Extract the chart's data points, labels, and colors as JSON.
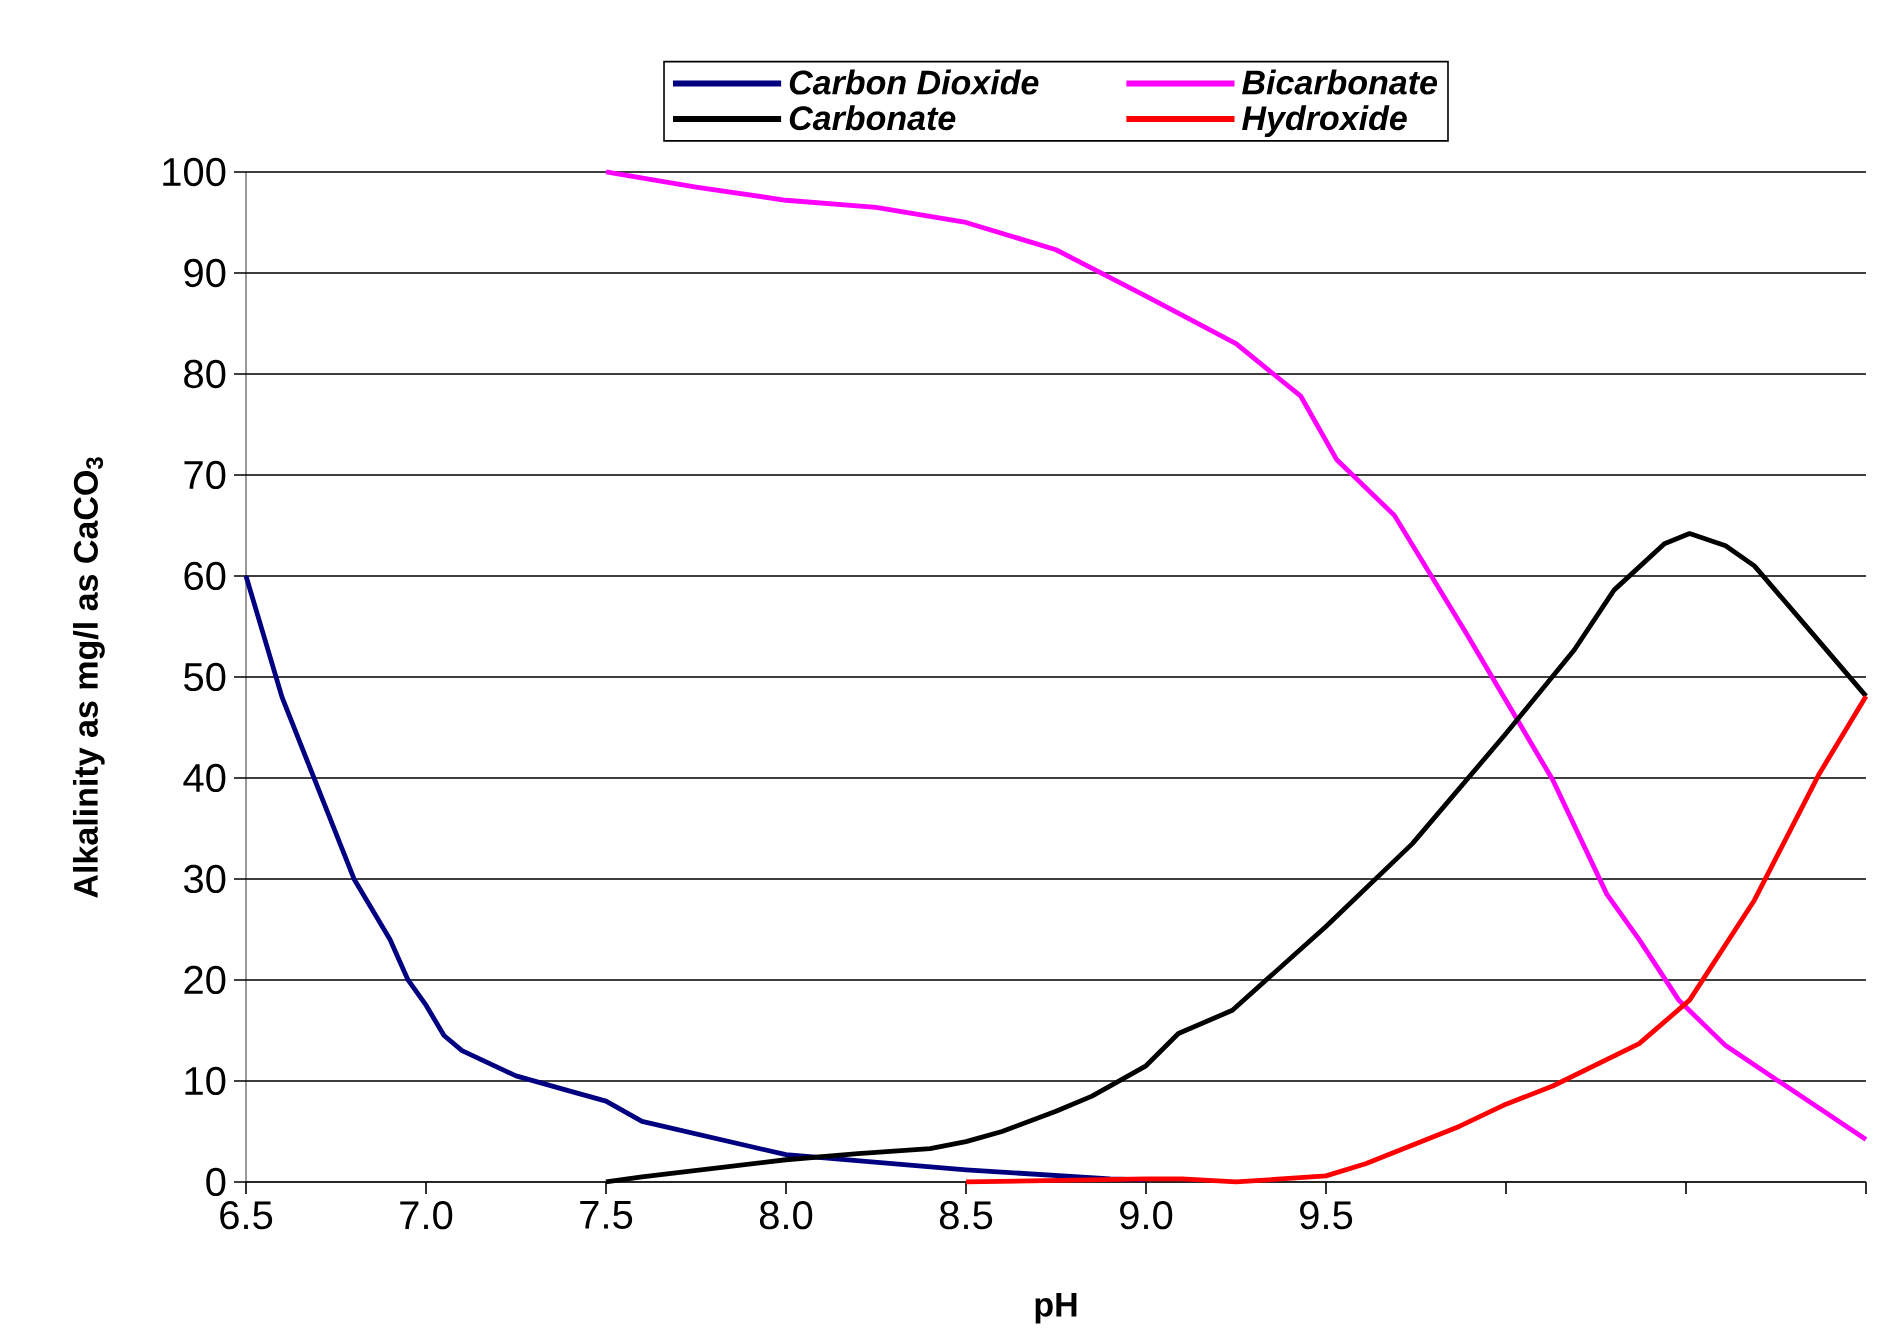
{
  "chart_data": {
    "type": "line",
    "xlabel": "pH",
    "ylabel": "Alkalinity as mg/l as CaCO$_{3}$",
    "xlim": [
      6.5,
      11
    ],
    "xticks": [
      6.5,
      {
        "value": 7,
        "label": "7.0"
      },
      7.5,
      {
        "value": 8,
        "label": "8.0"
      },
      8.5,
      {
        "value": 9,
        "label": "9.0"
      },
      9.5,
      {
        "value": 10,
        "label": null
      },
      {
        "value": 10.5,
        "label": null
      },
      {
        "value": 11,
        "label": null
      }
    ],
    "ylim": [
      0,
      100
    ],
    "yticks": [
      0,
      10,
      20,
      30,
      40,
      50,
      60,
      70,
      80,
      90,
      100
    ],
    "grid": "y",
    "legend": "top",
    "series": [
      {
        "name": "Carbon Dioxide",
        "color": "#000080",
        "x": [
          6.5,
          6.6,
          6.7,
          6.8,
          6.9,
          6.95,
          7.0,
          7.05,
          7.1,
          7.25,
          7.4,
          7.5,
          7.6,
          8.0,
          8.5,
          8.9,
          9.0
        ],
        "values": [
          60,
          48,
          39,
          30,
          24,
          20,
          17.5,
          14.5,
          13,
          10.5,
          9,
          8,
          6,
          2.7,
          1.2,
          0.3,
          0.2
        ]
      },
      {
        "name": "Bicarbonate",
        "color": "#ff00ff",
        "x": [
          7.5,
          7.75,
          8.0,
          8.25,
          8.5,
          8.75,
          9.0,
          9.25,
          9.43,
          9.53,
          9.69,
          9.89,
          10.13,
          10.28,
          10.37,
          10.48,
          10.61,
          11.0
        ],
        "values": [
          100,
          98.5,
          97.2,
          96.5,
          95,
          92.3,
          87.7,
          83,
          77.8,
          71.5,
          66,
          54.3,
          39.8,
          28.5,
          24,
          18,
          13.5,
          4.2
        ]
      },
      {
        "name": "Carbonate",
        "color": "#000000",
        "x": [
          7.5,
          7.6,
          8.0,
          8.2,
          8.4,
          8.5,
          8.6,
          8.75,
          8.85,
          9.0,
          9.09,
          9.24,
          9.5,
          9.74,
          10.0,
          10.19,
          10.3,
          10.44,
          10.51,
          10.61,
          10.69,
          10.82,
          11.0
        ],
        "values": [
          0,
          0.5,
          2.2,
          2.8,
          3.3,
          4,
          5,
          7,
          8.5,
          11.5,
          14.7,
          17,
          25.3,
          33.5,
          44.4,
          52.7,
          58.6,
          63.2,
          64.2,
          63,
          61,
          55.6,
          48.1
        ]
      },
      {
        "name": "Hydroxide",
        "color": "#ff0000",
        "x": [
          8.5,
          9.0,
          9.1,
          9.25,
          9.5,
          9.61,
          9.87,
          10.0,
          10.13,
          10.37,
          10.51,
          10.69,
          10.87,
          11.0
        ],
        "values": [
          0,
          0.3,
          0.3,
          0,
          0.6,
          1.8,
          5.5,
          7.7,
          9.5,
          13.7,
          18,
          27.9,
          40.4,
          48.1
        ]
      }
    ]
  }
}
